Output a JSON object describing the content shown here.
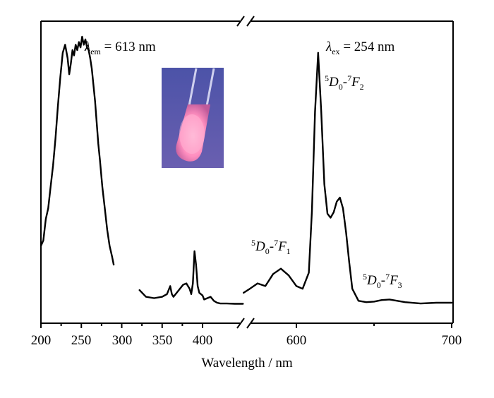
{
  "chart_data": {
    "type": "line",
    "xlabel": "Wavelength / nm",
    "ylabel": "",
    "x_ticks_left": [
      "200",
      "250",
      "300",
      "350",
      "400"
    ],
    "x_ticks_right": [
      "600",
      "700"
    ],
    "xlim_left": [
      200,
      450
    ],
    "xlim_right": [
      565,
      700
    ],
    "axis_break": true,
    "grid": false,
    "legend": "none",
    "annotations": {
      "em_label": {
        "symbol": "λ",
        "sub": "em",
        "text": " = 613 nm"
      },
      "ex_label": {
        "symbol": "λ",
        "sub": "ex",
        "text": " = 254 nm"
      },
      "t_f2": {
        "sup": "5",
        "a": "D",
        "sub1": "0",
        "dash": "-",
        "sup2": "7",
        "b": "F",
        "sub2": "2"
      },
      "t_f1": {
        "sup": "5",
        "a": "D",
        "sub1": "0",
        "dash": "-",
        "sup2": "7",
        "b": "F",
        "sub2": "1"
      },
      "t_f3": {
        "sup": "5",
        "a": "D",
        "sub1": "0",
        "dash": "-",
        "sup2": "7",
        "b": "F",
        "sub2": "3"
      }
    },
    "series": [
      {
        "segment": "excitation",
        "x": [
          200,
          203,
          206,
          209,
          212,
          215,
          218,
          221,
          224,
          227,
          230,
          233,
          235,
          237,
          239,
          241,
          243,
          245,
          247,
          249,
          251,
          253,
          255,
          257,
          259,
          261,
          263,
          265,
          267,
          269,
          271,
          273,
          276,
          279,
          282,
          285,
          288,
          290
        ],
        "y": [
          0.22,
          0.24,
          0.32,
          0.36,
          0.44,
          0.52,
          0.62,
          0.74,
          0.85,
          0.94,
          0.97,
          0.92,
          0.86,
          0.9,
          0.95,
          0.93,
          0.97,
          0.95,
          0.98,
          0.96,
          1.0,
          0.97,
          0.99,
          0.96,
          0.95,
          0.92,
          0.88,
          0.82,
          0.76,
          0.68,
          0.6,
          0.54,
          0.44,
          0.36,
          0.28,
          0.22,
          0.18,
          0.15
        ]
      },
      {
        "segment": "excitation",
        "x": [
          322,
          330,
          340,
          350,
          356,
          360,
          362,
          364,
          368,
          372,
          376,
          380,
          384,
          386,
          388,
          390,
          392,
          394,
          396,
          398,
          400,
          402,
          406,
          410,
          414,
          418,
          422,
          430,
          440,
          450
        ],
        "y": [
          0.055,
          0.03,
          0.025,
          0.03,
          0.04,
          0.07,
          0.04,
          0.03,
          0.045,
          0.06,
          0.075,
          0.08,
          0.06,
          0.04,
          0.08,
          0.2,
          0.15,
          0.07,
          0.045,
          0.04,
          0.035,
          0.02,
          0.025,
          0.03,
          0.015,
          0.008,
          0.005,
          0.005,
          0.004,
          0.004
        ]
      },
      {
        "segment": "emission",
        "x": [
          566,
          570,
          575,
          580,
          585,
          590,
          595,
          600,
          604,
          608,
          610,
          612,
          614,
          616,
          618,
          620,
          622,
          624,
          626,
          628,
          630,
          632,
          634,
          636,
          640,
          645,
          650,
          655,
          660,
          670,
          680,
          690,
          700
        ],
        "y": [
          0.045,
          0.06,
          0.08,
          0.07,
          0.115,
          0.135,
          0.11,
          0.07,
          0.06,
          0.12,
          0.35,
          0.72,
          0.94,
          0.72,
          0.45,
          0.34,
          0.325,
          0.345,
          0.385,
          0.4,
          0.36,
          0.27,
          0.16,
          0.06,
          0.015,
          0.01,
          0.012,
          0.018,
          0.02,
          0.01,
          0.005,
          0.008,
          0.008
        ]
      }
    ]
  },
  "inset": {
    "icon": "glowing-test-tube-photo",
    "colors": {
      "background": "#5a5aa8",
      "glow": "#ff9ec7",
      "tube": "#c9c6e8"
    }
  }
}
